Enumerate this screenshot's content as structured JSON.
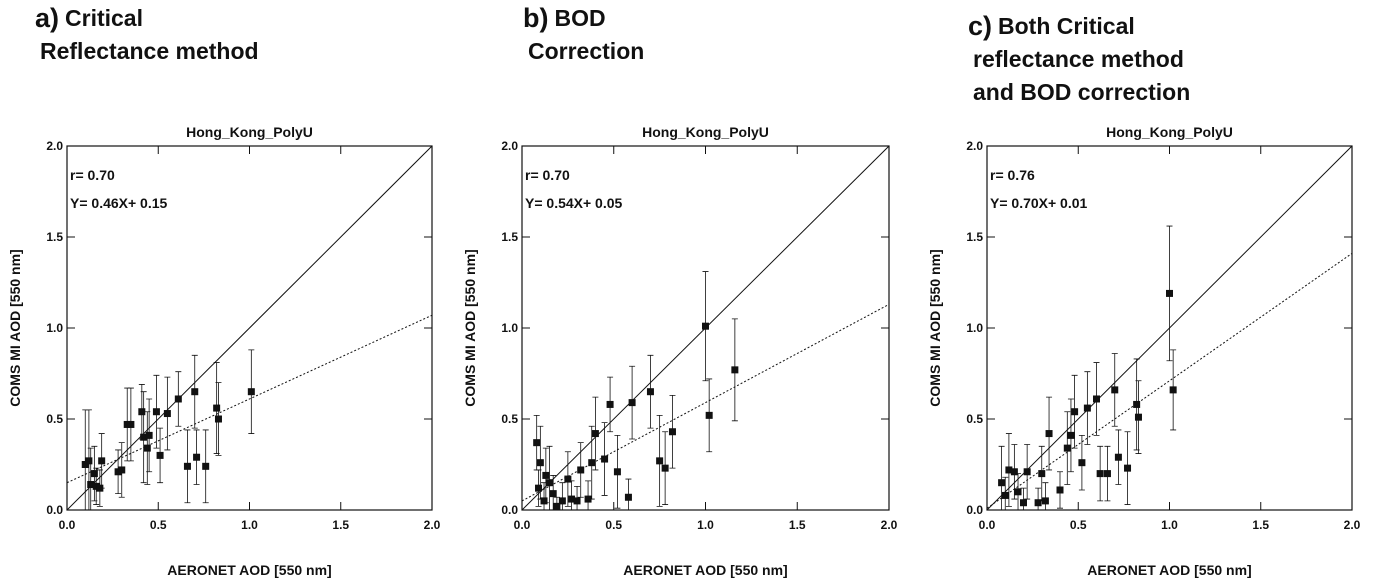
{
  "chart_data": [
    {
      "type": "scatter",
      "panel_label": "a)",
      "heading": [
        "Critical",
        "Reflectance method"
      ],
      "title": "Hong_Kong_PolyU",
      "xlabel": "AERONET AOD [550 nm]",
      "ylabel": "COMS MI AOD [550 nm]",
      "annotations": [
        "r= 0.70",
        "Y= 0.46X+  0.15"
      ],
      "xlim": [
        0,
        2
      ],
      "ylim": [
        0,
        2
      ],
      "xticks": [
        {
          "value": 0,
          "label": "0.0"
        },
        {
          "value": 0.5,
          "label": "0.5"
        },
        {
          "value": 1,
          "label": "1.0"
        },
        {
          "value": 1.5,
          "label": "1.5"
        },
        {
          "value": 2,
          "label": "2.0"
        }
      ],
      "yticks": [
        {
          "value": 0,
          "label": "0.0"
        },
        {
          "value": 0.5,
          "label": "0.5"
        },
        {
          "value": 1,
          "label": "1.0"
        },
        {
          "value": 1.5,
          "label": "1.5"
        },
        {
          "value": 2,
          "label": "2.0"
        }
      ],
      "x": [
        0.1,
        0.12,
        0.13,
        0.15,
        0.16,
        0.18,
        0.19,
        0.28,
        0.3,
        0.33,
        0.35,
        0.41,
        0.42,
        0.44,
        0.45,
        0.49,
        0.51,
        0.55,
        0.61,
        0.66,
        0.7,
        0.71,
        0.76,
        0.82,
        0.83,
        1.01
      ],
      "y": [
        0.25,
        0.27,
        0.14,
        0.2,
        0.13,
        0.12,
        0.27,
        0.21,
        0.22,
        0.47,
        0.47,
        0.54,
        0.4,
        0.34,
        0.41,
        0.54,
        0.3,
        0.53,
        0.61,
        0.24,
        0.65,
        0.29,
        0.24,
        0.56,
        0.5,
        0.65
      ],
      "yerr": [
        0.3,
        0.28,
        0.2,
        0.15,
        0.1,
        0.1,
        0.15,
        0.12,
        0.15,
        0.2,
        0.2,
        0.15,
        0.25,
        0.2,
        0.2,
        0.2,
        0.15,
        0.2,
        0.15,
        0.2,
        0.2,
        0.15,
        0.2,
        0.25,
        0.2,
        0.23
      ],
      "reference_line": {
        "slope": 1,
        "intercept": 0
      },
      "fit": {
        "slope": 0.46,
        "intercept": 0.15
      },
      "color": "#111111"
    },
    {
      "type": "scatter",
      "panel_label": "b)",
      "heading": [
        "BOD",
        "Correction"
      ],
      "title": "Hong_Kong_PolyU",
      "xlabel": "AERONET AOD [550 nm]",
      "ylabel": "COMS MI AOD [550 nm]",
      "annotations": [
        "r= 0.70",
        "Y= 0.54X+ 0.05"
      ],
      "xlim": [
        0,
        2
      ],
      "ylim": [
        0,
        2
      ],
      "xticks": [
        {
          "value": 0,
          "label": "0.0"
        },
        {
          "value": 0.5,
          "label": "0.5"
        },
        {
          "value": 1,
          "label": "1.0"
        },
        {
          "value": 1.5,
          "label": "1.5"
        },
        {
          "value": 2,
          "label": "2.0"
        }
      ],
      "yticks": [
        {
          "value": 0,
          "label": "0.0"
        },
        {
          "value": 0.5,
          "label": "0.5"
        },
        {
          "value": 1,
          "label": "1.0"
        },
        {
          "value": 1.5,
          "label": "1.5"
        },
        {
          "value": 2,
          "label": "2.0"
        }
      ],
      "x": [
        0.08,
        0.09,
        0.1,
        0.12,
        0.13,
        0.15,
        0.17,
        0.19,
        0.22,
        0.25,
        0.27,
        0.3,
        0.32,
        0.36,
        0.38,
        0.4,
        0.45,
        0.48,
        0.52,
        0.58,
        0.6,
        0.7,
        0.75,
        0.78,
        0.82,
        1.0,
        1.02,
        1.16
      ],
      "y": [
        0.37,
        0.12,
        0.26,
        0.05,
        0.19,
        0.15,
        0.09,
        0.02,
        0.05,
        0.17,
        0.06,
        0.05,
        0.22,
        0.06,
        0.26,
        0.42,
        0.28,
        0.58,
        0.21,
        0.07,
        0.59,
        0.65,
        0.27,
        0.23,
        0.43,
        1.01,
        0.52,
        0.77
      ],
      "yerr": [
        0.15,
        0.1,
        0.2,
        0.1,
        0.15,
        0.2,
        0.1,
        0.05,
        0.1,
        0.15,
        0.1,
        0.08,
        0.15,
        0.1,
        0.2,
        0.2,
        0.2,
        0.15,
        0.2,
        0.1,
        0.2,
        0.2,
        0.25,
        0.2,
        0.2,
        0.3,
        0.2,
        0.28
      ],
      "reference_line": {
        "slope": 1,
        "intercept": 0
      },
      "fit": {
        "slope": 0.54,
        "intercept": 0.05
      },
      "color": "#111111"
    },
    {
      "type": "scatter",
      "panel_label": "c)",
      "heading": [
        "Both Critical",
        "reflectance method",
        "and BOD correction"
      ],
      "title": "Hong_Kong_PolyU",
      "xlabel": "AERONET AOD [550 nm]",
      "ylabel": "COMS MI AOD [550 nm]",
      "annotations": [
        "r= 0.76",
        "Y= 0.70X+ 0.01"
      ],
      "xlim": [
        0,
        2
      ],
      "ylim": [
        0,
        2
      ],
      "xticks": [
        {
          "value": 0,
          "label": "0.0"
        },
        {
          "value": 0.5,
          "label": "0.5"
        },
        {
          "value": 1,
          "label": "1.0"
        },
        {
          "value": 1.5,
          "label": "1.5"
        },
        {
          "value": 2,
          "label": "2.0"
        }
      ],
      "yticks": [
        {
          "value": 0,
          "label": "0.0"
        },
        {
          "value": 0.5,
          "label": "0.5"
        },
        {
          "value": 1,
          "label": "1.0"
        },
        {
          "value": 1.5,
          "label": "1.5"
        },
        {
          "value": 2,
          "label": "2.0"
        }
      ],
      "x": [
        0.08,
        0.1,
        0.12,
        0.15,
        0.17,
        0.2,
        0.22,
        0.28,
        0.3,
        0.32,
        0.34,
        0.4,
        0.44,
        0.46,
        0.48,
        0.52,
        0.55,
        0.6,
        0.62,
        0.66,
        0.7,
        0.72,
        0.77,
        0.82,
        0.83,
        1.0,
        1.02
      ],
      "y": [
        0.15,
        0.08,
        0.22,
        0.21,
        0.1,
        0.04,
        0.21,
        0.04,
        0.2,
        0.05,
        0.42,
        0.11,
        0.34,
        0.41,
        0.54,
        0.26,
        0.56,
        0.61,
        0.2,
        0.2,
        0.66,
        0.29,
        0.23,
        0.58,
        0.51,
        1.19,
        0.66
      ],
      "yerr": [
        0.2,
        0.1,
        0.2,
        0.15,
        0.1,
        0.08,
        0.15,
        0.08,
        0.15,
        0.1,
        0.2,
        0.1,
        0.2,
        0.2,
        0.2,
        0.15,
        0.2,
        0.2,
        0.15,
        0.15,
        0.2,
        0.15,
        0.2,
        0.25,
        0.2,
        0.37,
        0.22
      ],
      "reference_line": {
        "slope": 1,
        "intercept": 0
      },
      "fit": {
        "slope": 0.7,
        "intercept": 0.01
      },
      "color": "#111111"
    }
  ]
}
